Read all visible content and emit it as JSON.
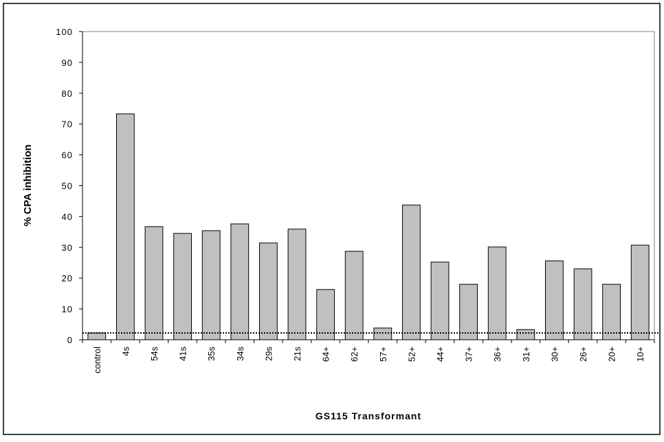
{
  "chart_data": {
    "type": "bar",
    "x_label": "GS115 Transformant",
    "y_label": "% CPA inhibition",
    "categories": [
      "control",
      "4s",
      "54s",
      "41s",
      "35s",
      "34s",
      "29s",
      "21s",
      "64+",
      "62+",
      "57+",
      "52+",
      "44+",
      "37+",
      "36+",
      "31+",
      "30+",
      "26+",
      "20+",
      "10+"
    ],
    "values": [
      2.2,
      73.3,
      36.7,
      34.5,
      35.4,
      37.6,
      31.4,
      35.9,
      16.3,
      28.7,
      3.8,
      43.7,
      25.2,
      18.0,
      30.1,
      3.3,
      25.6,
      23.0,
      18.0,
      30.7
    ],
    "color": "#c0c0c0",
    "reference_line": 2.2,
    "ylim": [
      0,
      100
    ],
    "yticks": [
      0,
      10,
      20,
      30,
      40,
      50,
      60,
      70,
      80,
      90,
      100
    ],
    "grid": false
  }
}
